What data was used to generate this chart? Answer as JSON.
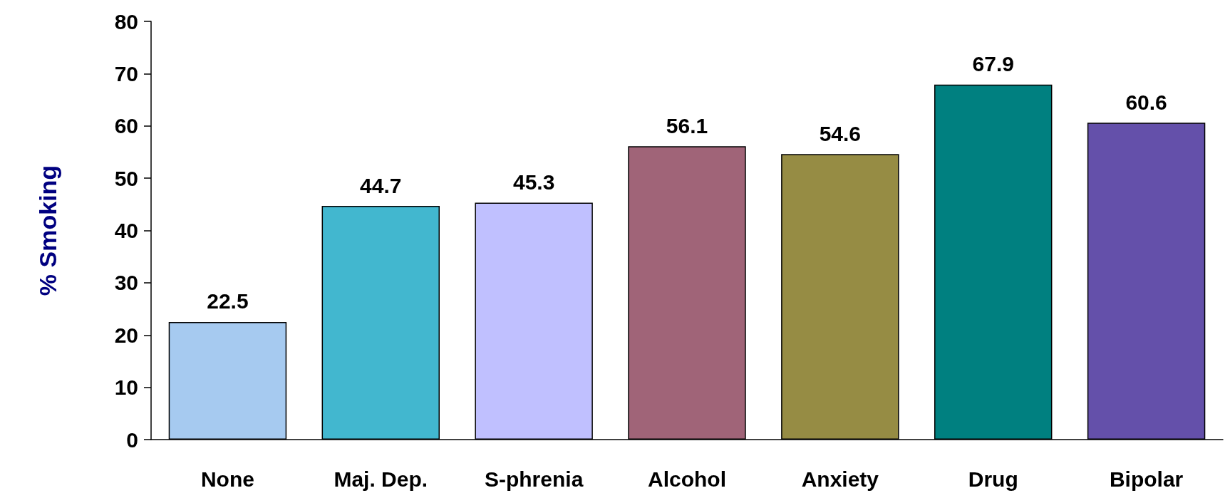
{
  "chart_data": {
    "type": "bar",
    "ylabel": "% Smoking",
    "categories": [
      "None",
      "Maj. Dep.",
      "S-phrenia",
      "Alcohol",
      "Anxiety",
      "Drug",
      "Bipolar"
    ],
    "values": [
      22.5,
      44.7,
      45.3,
      56.1,
      54.6,
      67.9,
      60.6
    ],
    "colors": [
      "#a6caf0",
      "#42b7cf",
      "#c0c0ff",
      "#a06478",
      "#968c44",
      "#008080",
      "#6450aa"
    ],
    "ylim": [
      0,
      80
    ],
    "yticks": [
      0,
      10,
      20,
      30,
      40,
      50,
      60,
      70,
      80
    ],
    "data_labels": true
  }
}
